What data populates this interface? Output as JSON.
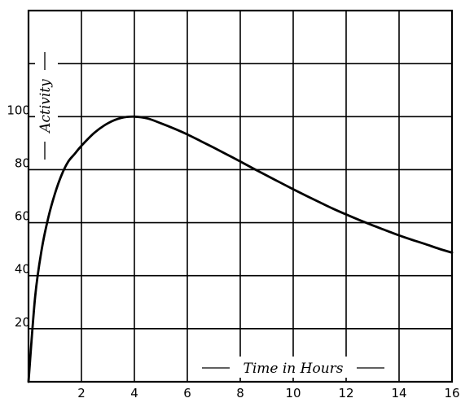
{
  "chart_data": {
    "type": "line",
    "title": "",
    "xlabel": "Time in Hours",
    "ylabel": "Activity",
    "xlim": [
      0,
      16
    ],
    "ylim": [
      0,
      140
    ],
    "grid": true,
    "x_ticks": [
      2,
      4,
      6,
      8,
      10,
      12,
      14,
      16
    ],
    "y_ticks": [
      20,
      40,
      60,
      80,
      100
    ],
    "y_grid": [
      20,
      40,
      60,
      80,
      100,
      120
    ],
    "series": [
      {
        "x": [
          0,
          0.25,
          0.5,
          0.75,
          1,
          1.25,
          1.5,
          1.75,
          2,
          2.5,
          3,
          3.5,
          4,
          4.5,
          5,
          5.5,
          6,
          6.5,
          7,
          7.5,
          8,
          8.5,
          9,
          9.5,
          10,
          10.5,
          11,
          11.5,
          12,
          12.5,
          13,
          13.5,
          14,
          14.5,
          15,
          15.5,
          16
        ],
        "y": [
          0,
          32,
          50,
          62,
          71,
          78,
          83,
          86,
          89,
          94,
          97.5,
          99.5,
          100,
          99.3,
          97.5,
          95.5,
          93.3,
          90.8,
          88.3,
          85.7,
          83.1,
          80.4,
          77.8,
          75.2,
          72.6,
          70.1,
          67.7,
          65.3,
          63.1,
          61,
          59,
          57.1,
          55.2,
          53.5,
          51.9,
          50.2,
          48.7
        ]
      }
    ]
  }
}
